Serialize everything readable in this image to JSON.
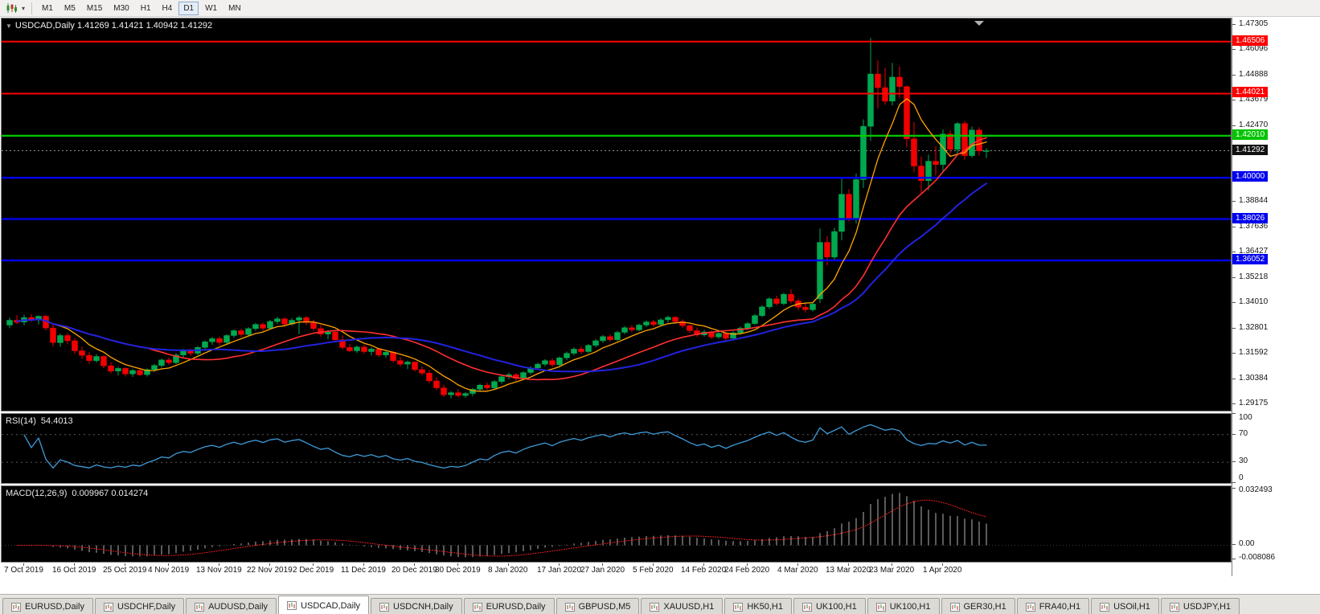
{
  "toolbar": {
    "chart_type_icon": "candlestick-chart-icon",
    "dropdown_glyph": "▾",
    "timeframes": [
      "M1",
      "M5",
      "M15",
      "M30",
      "H1",
      "H4",
      "D1",
      "W1",
      "MN"
    ],
    "active_timeframe": "D1"
  },
  "chart": {
    "symbol_title": "USDCAD,Daily",
    "ohlc_text": "1.41269 1.41421 1.40942 1.41292",
    "expand_glyph": "▼",
    "open": 1.41269,
    "high": 1.41421,
    "low": 1.40942,
    "close": 1.41292
  },
  "price_scale": {
    "tick_labels": [
      "1.47305",
      "1.46096",
      "1.44888",
      "1.43679",
      "1.42470",
      "1.41262",
      "1.40053",
      "1.38844",
      "1.37636",
      "1.36427",
      "1.35218",
      "1.34010",
      "1.32801",
      "1.31592",
      "1.30384",
      "1.29175"
    ]
  },
  "hlines": [
    {
      "price": 1.46506,
      "label": "1.46506",
      "color": "#FF0000",
      "width": 2
    },
    {
      "price": 1.44021,
      "label": "1.44021",
      "color": "#FF0000",
      "width": 2
    },
    {
      "price": 1.4201,
      "label": "1.42010",
      "color": "#00C400",
      "width": 2.4
    },
    {
      "price": 1.4,
      "label": "1.40000",
      "color": "#0000F0",
      "width": 2.4
    },
    {
      "price": 1.38026,
      "label": "1.38026",
      "color": "#0000F0",
      "width": 2.4
    },
    {
      "price": 1.36052,
      "label": "1.36052",
      "color": "#0000F0",
      "width": 2.4
    }
  ],
  "current_price": {
    "label": "1.41292",
    "value": 1.41292,
    "tag_color": "#111111"
  },
  "rsi": {
    "name": "RSI(14)",
    "value": "54.4013",
    "period": 14,
    "color": "#3E9BD8",
    "scale_labels": [
      {
        "label": "100",
        "value": 100
      },
      {
        "label": "70",
        "value": 70
      },
      {
        "label": "30",
        "value": 30
      },
      {
        "label": "0",
        "value": 0
      }
    ],
    "levels": [
      70,
      30
    ]
  },
  "macd": {
    "name": "MACD(12,26,9)",
    "values": "0.009967 0.014274",
    "main": 0.009967,
    "signal": 0.014274,
    "histogram_color": "#B4B4B4",
    "signal_color": "#FF2020",
    "scale_labels": [
      {
        "label": "0.032493",
        "value": 0.032493
      },
      {
        "label": "0.00",
        "value": 0
      },
      {
        "label": "-0.008086",
        "value": -0.008086
      }
    ]
  },
  "tab_bar": {
    "active_index": 3,
    "tabs": [
      "EURUSD,Daily",
      "USDCHF,Daily",
      "AUDUSD,Daily",
      "USDCAD,Daily",
      "USDCNH,Daily",
      "EURUSD,Daily",
      "GBPUSD,M5",
      "XAUUSD,H1",
      "HK50,H1",
      "UK100,H1",
      "UK100,H1",
      "GER30,H1",
      "FRA40,H1",
      "USOil,H1",
      "USDJPY,H1"
    ]
  },
  "chart_data": {
    "type": "candlestick",
    "symbol": "USDCAD",
    "timeframe": "Daily",
    "title": "USDCAD,Daily",
    "ylim": [
      1.29175,
      1.47305
    ],
    "colors": {
      "up": "#00A94F",
      "down": "#F20000",
      "background": "#000000",
      "foreground": "#FFFFFF"
    },
    "moving_averages": [
      {
        "name": "MA fast",
        "period": 7,
        "color": "#FFA500",
        "width": 1.3
      },
      {
        "name": "MA medium",
        "period": 20,
        "color": "#FF3030",
        "width": 1.6
      },
      {
        "name": "MA slow",
        "period": 30,
        "color": "#2222E0",
        "width": 2
      }
    ],
    "date_ticks": [
      {
        "label": "7 Oct 2019",
        "index": 2
      },
      {
        "label": "16 Oct 2019",
        "index": 9
      },
      {
        "label": "25 Oct 2019",
        "index": 16
      },
      {
        "label": "4 Nov 2019",
        "index": 22
      },
      {
        "label": "13 Nov 2019",
        "index": 29
      },
      {
        "label": "22 Nov 2019",
        "index": 36
      },
      {
        "label": "2 Dec 2019",
        "index": 42
      },
      {
        "label": "11 Dec 2019",
        "index": 49
      },
      {
        "label": "20 Dec 2019",
        "index": 56
      },
      {
        "label": "30 Dec 2019",
        "index": 62
      },
      {
        "label": "8 Jan 2020",
        "index": 69
      },
      {
        "label": "17 Jan 2020",
        "index": 76
      },
      {
        "label": "27 Jan 2020",
        "index": 82
      },
      {
        "label": "5 Feb 2020",
        "index": 89
      },
      {
        "label": "14 Feb 2020",
        "index": 96
      },
      {
        "label": "24 Feb 2020",
        "index": 102
      },
      {
        "label": "4 Mar 2020",
        "index": 109
      },
      {
        "label": "13 Mar 2020",
        "index": 116
      },
      {
        "label": "23 Mar 2020",
        "index": 122
      },
      {
        "label": "1 Apr 2020",
        "index": 129
      }
    ],
    "ohlc": [
      [
        1.3296,
        1.3331,
        1.3281,
        1.3319
      ],
      [
        1.3319,
        1.3343,
        1.3301,
        1.3309
      ],
      [
        1.331,
        1.3345,
        1.3295,
        1.3332
      ],
      [
        1.3332,
        1.3348,
        1.3312,
        1.332
      ],
      [
        1.332,
        1.3342,
        1.3298,
        1.3338
      ],
      [
        1.3338,
        1.3345,
        1.327,
        1.3282
      ],
      [
        1.3282,
        1.3298,
        1.3195,
        1.3212
      ],
      [
        1.3212,
        1.3255,
        1.3192,
        1.3246
      ],
      [
        1.3246,
        1.3258,
        1.3205,
        1.3221
      ],
      [
        1.3221,
        1.3233,
        1.316,
        1.3173
      ],
      [
        1.3173,
        1.3192,
        1.3135,
        1.3151
      ],
      [
        1.3151,
        1.3166,
        1.311,
        1.3126
      ],
      [
        1.3126,
        1.3156,
        1.3116,
        1.3146
      ],
      [
        1.3146,
        1.3151,
        1.309,
        1.3101
      ],
      [
        1.3101,
        1.3119,
        1.3065,
        1.3076
      ],
      [
        1.3076,
        1.3096,
        1.3055,
        1.3089
      ],
      [
        1.3089,
        1.3093,
        1.305,
        1.3063
      ],
      [
        1.3063,
        1.3086,
        1.3048,
        1.3079
      ],
      [
        1.3079,
        1.3091,
        1.3052,
        1.3059
      ],
      [
        1.3059,
        1.3089,
        1.305,
        1.3083
      ],
      [
        1.3083,
        1.3111,
        1.3071,
        1.3103
      ],
      [
        1.3103,
        1.3136,
        1.3093,
        1.3129
      ],
      [
        1.3129,
        1.3141,
        1.3106,
        1.3116
      ],
      [
        1.3116,
        1.3161,
        1.3109,
        1.3153
      ],
      [
        1.3153,
        1.3181,
        1.3141,
        1.3173
      ],
      [
        1.3173,
        1.3183,
        1.3149,
        1.3161
      ],
      [
        1.3161,
        1.3196,
        1.3153,
        1.3189
      ],
      [
        1.3189,
        1.3223,
        1.3181,
        1.3216
      ],
      [
        1.3216,
        1.3239,
        1.3201,
        1.3231
      ],
      [
        1.3231,
        1.3241,
        1.3199,
        1.3213
      ],
      [
        1.3213,
        1.3253,
        1.3206,
        1.3246
      ],
      [
        1.3246,
        1.3276,
        1.3236,
        1.3269
      ],
      [
        1.3269,
        1.3279,
        1.3239,
        1.3251
      ],
      [
        1.3251,
        1.3286,
        1.3243,
        1.3279
      ],
      [
        1.3279,
        1.3306,
        1.3269,
        1.3299
      ],
      [
        1.3299,
        1.3309,
        1.3266,
        1.3281
      ],
      [
        1.3281,
        1.3321,
        1.3273,
        1.3313
      ],
      [
        1.3313,
        1.3336,
        1.3301,
        1.3326
      ],
      [
        1.3326,
        1.3333,
        1.3289,
        1.3301
      ],
      [
        1.3301,
        1.3329,
        1.3293,
        1.3319
      ],
      [
        1.3319,
        1.3341,
        1.3253,
        1.3331
      ],
      [
        1.3331,
        1.3339,
        1.3296,
        1.3308
      ],
      [
        1.3308,
        1.3322,
        1.3268,
        1.3279
      ],
      [
        1.3279,
        1.3296,
        1.3241,
        1.3253
      ],
      [
        1.3253,
        1.3271,
        1.3229,
        1.3263
      ],
      [
        1.3263,
        1.3269,
        1.3216,
        1.3226
      ],
      [
        1.3226,
        1.3246,
        1.3179,
        1.3189
      ],
      [
        1.3189,
        1.3206,
        1.3166,
        1.3173
      ],
      [
        1.3173,
        1.3199,
        1.3163,
        1.3191
      ],
      [
        1.3191,
        1.3203,
        1.3159,
        1.3169
      ],
      [
        1.3169,
        1.3189,
        1.3151,
        1.3181
      ],
      [
        1.3181,
        1.3186,
        1.3143,
        1.3153
      ],
      [
        1.3153,
        1.3173,
        1.3139,
        1.3166
      ],
      [
        1.3166,
        1.3171,
        1.3116,
        1.3126
      ],
      [
        1.3126,
        1.3143,
        1.3099,
        1.3109
      ],
      [
        1.3109,
        1.3126,
        1.3086,
        1.3119
      ],
      [
        1.3119,
        1.3123,
        1.3073,
        1.3083
      ],
      [
        1.3083,
        1.3099,
        1.3056,
        1.3066
      ],
      [
        1.3066,
        1.3081,
        1.3019,
        1.3029
      ],
      [
        1.3029,
        1.3046,
        1.2986,
        1.2996
      ],
      [
        1.2996,
        1.3011,
        1.2953,
        1.2963
      ],
      [
        1.2963,
        1.2981,
        1.2946,
        1.2973
      ],
      [
        1.2973,
        1.2989,
        1.2951,
        1.2959
      ],
      [
        1.2959,
        1.2976,
        1.2949,
        1.2969
      ],
      [
        1.2969,
        1.2996,
        1.2956,
        1.2989
      ],
      [
        1.2989,
        1.3016,
        1.2979,
        1.3009
      ],
      [
        1.3009,
        1.3021,
        1.2986,
        1.2996
      ],
      [
        1.2996,
        1.3033,
        1.2989,
        1.3026
      ],
      [
        1.3026,
        1.3056,
        1.3016,
        1.3049
      ],
      [
        1.3049,
        1.3069,
        1.3036,
        1.3059
      ],
      [
        1.3059,
        1.3066,
        1.3029,
        1.3041
      ],
      [
        1.3041,
        1.3076,
        1.3033,
        1.3069
      ],
      [
        1.3069,
        1.3099,
        1.3059,
        1.3091
      ],
      [
        1.3091,
        1.3116,
        1.3081,
        1.3109
      ],
      [
        1.3109,
        1.3133,
        1.3099,
        1.3126
      ],
      [
        1.3126,
        1.3136,
        1.3096,
        1.3106
      ],
      [
        1.3106,
        1.3146,
        1.3099,
        1.3139
      ],
      [
        1.3139,
        1.3169,
        1.3129,
        1.3161
      ],
      [
        1.3161,
        1.3189,
        1.3151,
        1.3181
      ],
      [
        1.3181,
        1.3193,
        1.3159,
        1.3169
      ],
      [
        1.3169,
        1.3206,
        1.3161,
        1.3199
      ],
      [
        1.3199,
        1.3229,
        1.3189,
        1.3221
      ],
      [
        1.3221,
        1.3249,
        1.3211,
        1.3241
      ],
      [
        1.3241,
        1.3251,
        1.3216,
        1.3226
      ],
      [
        1.3226,
        1.3269,
        1.3219,
        1.3261
      ],
      [
        1.3261,
        1.3291,
        1.3253,
        1.3283
      ],
      [
        1.3283,
        1.3296,
        1.3263,
        1.3273
      ],
      [
        1.3273,
        1.3303,
        1.3266,
        1.3296
      ],
      [
        1.3296,
        1.3319,
        1.3286,
        1.3311
      ],
      [
        1.3311,
        1.3321,
        1.3289,
        1.3299
      ],
      [
        1.3299,
        1.3329,
        1.3291,
        1.3321
      ],
      [
        1.3321,
        1.3341,
        1.3309,
        1.3333
      ],
      [
        1.3333,
        1.3339,
        1.3303,
        1.3313
      ],
      [
        1.3313,
        1.3323,
        1.3283,
        1.3293
      ],
      [
        1.3293,
        1.3301,
        1.3259,
        1.3269
      ],
      [
        1.3269,
        1.3283,
        1.3239,
        1.3249
      ],
      [
        1.3249,
        1.3273,
        1.3241,
        1.3263
      ],
      [
        1.3263,
        1.3269,
        1.3229,
        1.3239
      ],
      [
        1.3239,
        1.3263,
        1.3231,
        1.3256
      ],
      [
        1.3256,
        1.3261,
        1.3223,
        1.3233
      ],
      [
        1.3233,
        1.3266,
        1.3226,
        1.3259
      ],
      [
        1.3259,
        1.3289,
        1.3251,
        1.3281
      ],
      [
        1.3281,
        1.3311,
        1.3273,
        1.3303
      ],
      [
        1.3303,
        1.3349,
        1.3296,
        1.3341
      ],
      [
        1.3341,
        1.3391,
        1.3333,
        1.3383
      ],
      [
        1.3383,
        1.3429,
        1.3373,
        1.3421
      ],
      [
        1.3421,
        1.3436,
        1.3389,
        1.3399
      ],
      [
        1.3399,
        1.3451,
        1.3391,
        1.3443
      ],
      [
        1.3443,
        1.3466,
        1.3399,
        1.3411
      ],
      [
        1.3411,
        1.3423,
        1.3369,
        1.3381
      ],
      [
        1.3381,
        1.3401,
        1.3356,
        1.3369
      ],
      [
        1.3369,
        1.3403,
        1.3361,
        1.3396
      ],
      [
        1.3421,
        1.3758,
        1.3401,
        1.3691
      ],
      [
        1.3691,
        1.3721,
        1.3581,
        1.3621
      ],
      [
        1.3621,
        1.3761,
        1.3606,
        1.3743
      ],
      [
        1.3743,
        1.3996,
        1.3701,
        1.3921
      ],
      [
        1.3921,
        1.3946,
        1.3791,
        1.3801
      ],
      [
        1.3801,
        1.4021,
        1.3781,
        1.3991
      ],
      [
        1.3991,
        1.4279,
        1.3951,
        1.4246
      ],
      [
        1.4246,
        1.4668,
        1.4176,
        1.4496
      ],
      [
        1.4496,
        1.4561,
        1.4331,
        1.4431
      ],
      [
        1.4431,
        1.4526,
        1.4349,
        1.4366
      ],
      [
        1.4366,
        1.4549,
        1.4346,
        1.4481
      ],
      [
        1.4481,
        1.4531,
        1.4381,
        1.4436
      ],
      [
        1.4436,
        1.4441,
        1.4146,
        1.4186
      ],
      [
        1.4186,
        1.4266,
        1.4026,
        1.4056
      ],
      [
        1.4056,
        1.4101,
        1.3921,
        1.3986
      ],
      [
        1.3986,
        1.4111,
        1.3941,
        1.4079
      ],
      [
        1.4079,
        1.4151,
        1.4011,
        1.4063
      ],
      [
        1.4063,
        1.4231,
        1.4031,
        1.4209
      ],
      [
        1.4209,
        1.4226,
        1.4101,
        1.4136
      ],
      [
        1.4136,
        1.4266,
        1.4116,
        1.4259
      ],
      [
        1.4259,
        1.4271,
        1.4086,
        1.4106
      ],
      [
        1.4106,
        1.4245,
        1.4096,
        1.4228
      ],
      [
        1.4228,
        1.4241,
        1.4106,
        1.4128
      ],
      [
        1.41269,
        1.41421,
        1.40942,
        1.41292
      ]
    ]
  }
}
